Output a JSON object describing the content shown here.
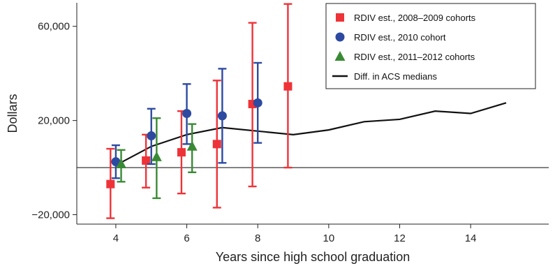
{
  "chart_data": {
    "type": "scatter",
    "title": "",
    "xlabel": "Years since high school graduation",
    "ylabel": "Dollars",
    "xlim": [
      2.9,
      16.2
    ],
    "ylim": [
      -24000,
      70000
    ],
    "x_ticks": [
      4,
      6,
      8,
      10,
      12,
      14
    ],
    "y_ticks": [
      -20000,
      20000,
      60000
    ],
    "y_tick_labels": [
      "−20,000",
      "20,000",
      "60,000"
    ],
    "reference_line_y": 0,
    "legend_position": "top-right",
    "series": [
      {
        "name": "RDIV est., 2008–2009 cohorts",
        "marker": "square",
        "color": "#ee3338",
        "points": [
          {
            "x": 3.85,
            "y": -7000,
            "lo": -21500,
            "hi": 8000
          },
          {
            "x": 4.85,
            "y": 3000,
            "lo": -8500,
            "hi": 14000
          },
          {
            "x": 5.85,
            "y": 6500,
            "lo": -11000,
            "hi": 24000
          },
          {
            "x": 6.85,
            "y": 10000,
            "lo": -17000,
            "hi": 37000
          },
          {
            "x": 7.85,
            "y": 27000,
            "lo": -8000,
            "hi": 61500
          },
          {
            "x": 8.85,
            "y": 34500,
            "lo": 0,
            "hi": 69500
          }
        ]
      },
      {
        "name": "RDIV est., 2010 cohort",
        "color": "#2d4aa0",
        "marker": "circle",
        "points": [
          {
            "x": 4.0,
            "y": 2500,
            "lo": -4500,
            "hi": 9500
          },
          {
            "x": 5.0,
            "y": 13500,
            "lo": 1500,
            "hi": 25000
          },
          {
            "x": 6.0,
            "y": 23000,
            "lo": 10000,
            "hi": 35500
          },
          {
            "x": 7.0,
            "y": 22000,
            "lo": 2000,
            "hi": 42000
          },
          {
            "x": 8.0,
            "y": 27500,
            "lo": 10500,
            "hi": 44500
          }
        ]
      },
      {
        "name": "RDIV est., 2011–2012 cohorts",
        "color": "#3a8a35",
        "marker": "triangle",
        "points": [
          {
            "x": 4.15,
            "y": 1500,
            "lo": -6000,
            "hi": 7500
          },
          {
            "x": 5.15,
            "y": 4500,
            "lo": -13000,
            "hi": 21000
          },
          {
            "x": 6.15,
            "y": 9000,
            "lo": -2000,
            "hi": 18500
          }
        ]
      },
      {
        "name": "Diff. in ACS medians",
        "color": "#111111",
        "marker": "line",
        "x": [
          4,
          5,
          6,
          7,
          8,
          9,
          10,
          11,
          12,
          13,
          14,
          15
        ],
        "y": [
          1000,
          9000,
          14000,
          17000,
          15500,
          14000,
          16000,
          19500,
          20500,
          24000,
          23000,
          27500
        ]
      }
    ]
  }
}
